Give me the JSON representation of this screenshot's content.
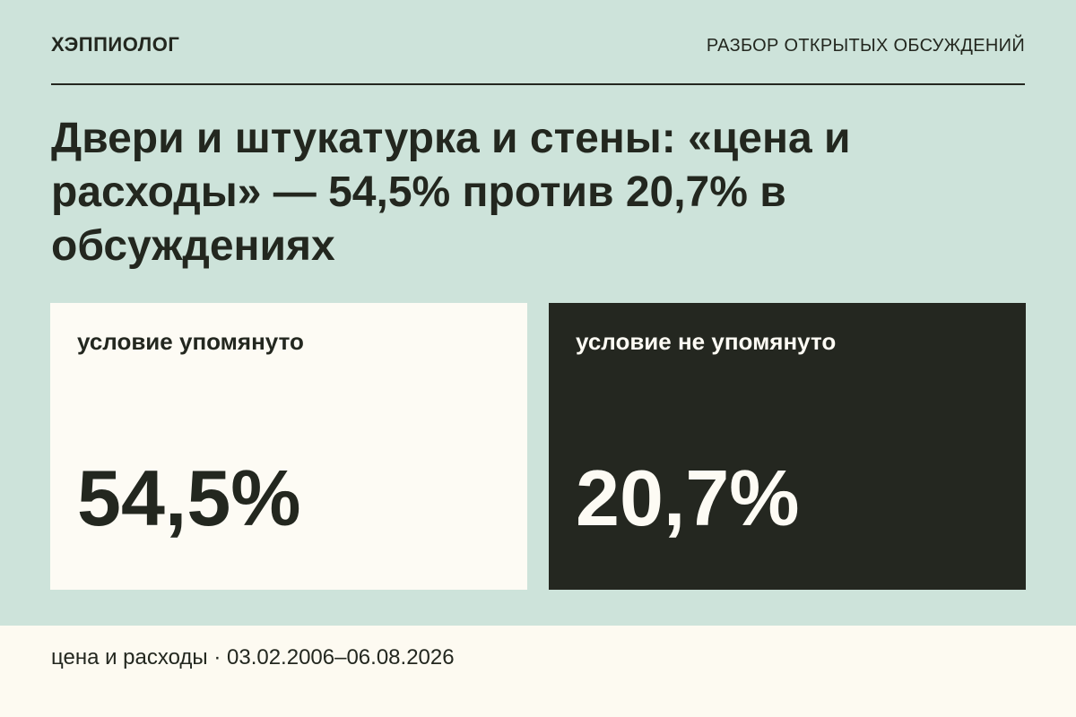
{
  "header": {
    "brand": "ХЭППИОЛОГ",
    "section": "РАЗБОР ОТКРЫТЫХ ОБСУЖДЕНИЙ"
  },
  "title": "Двери и штукатурка и стены: «цена и расходы» — 54,5% против 20,7% в обсуждениях",
  "cards": [
    {
      "label": "условие упомянуто",
      "value": "54,5%"
    },
    {
      "label": "условие не упомянуто",
      "value": "20,7%"
    }
  ],
  "footer": "цена и расходы · 03.02.2006–06.08.2026"
}
